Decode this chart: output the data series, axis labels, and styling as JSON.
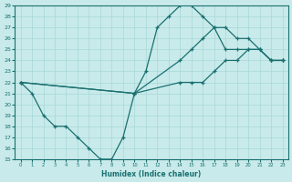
{
  "xlabel": "Humidex (Indice chaleur)",
  "bg_color": "#c8eaea",
  "grid_color": "#a8d8d8",
  "line_color": "#1a7070",
  "xlim": [
    -0.5,
    23.5
  ],
  "ylim": [
    15,
    29
  ],
  "xticks": [
    0,
    1,
    2,
    3,
    4,
    5,
    6,
    7,
    8,
    9,
    10,
    11,
    12,
    13,
    14,
    15,
    16,
    17,
    18,
    19,
    20,
    21,
    22,
    23
  ],
  "yticks": [
    15,
    16,
    17,
    18,
    19,
    20,
    21,
    22,
    23,
    24,
    25,
    26,
    27,
    28,
    29
  ],
  "line1_x": [
    0,
    1,
    2,
    3,
    4,
    5,
    6,
    7,
    8,
    9,
    10,
    11,
    12,
    13,
    14,
    15,
    16,
    17,
    18,
    19,
    20,
    21,
    22,
    23
  ],
  "line1_y": [
    22,
    21,
    19,
    18,
    18,
    17,
    16,
    15,
    15,
    17,
    21,
    23,
    27,
    28,
    29,
    29,
    28,
    27,
    25,
    25,
    25,
    25,
    24,
    24
  ],
  "line2_x": [
    0,
    10,
    14,
    15,
    16,
    17,
    18,
    19,
    20,
    21,
    22,
    23
  ],
  "line2_y": [
    22,
    21,
    22,
    22,
    22,
    23,
    24,
    24,
    25,
    25,
    24,
    24
  ],
  "line3_x": [
    0,
    10,
    14,
    15,
    16,
    17,
    18,
    19,
    20,
    21,
    22,
    23
  ],
  "line3_y": [
    22,
    21,
    24,
    25,
    26,
    27,
    27,
    26,
    26,
    25,
    24,
    24
  ]
}
